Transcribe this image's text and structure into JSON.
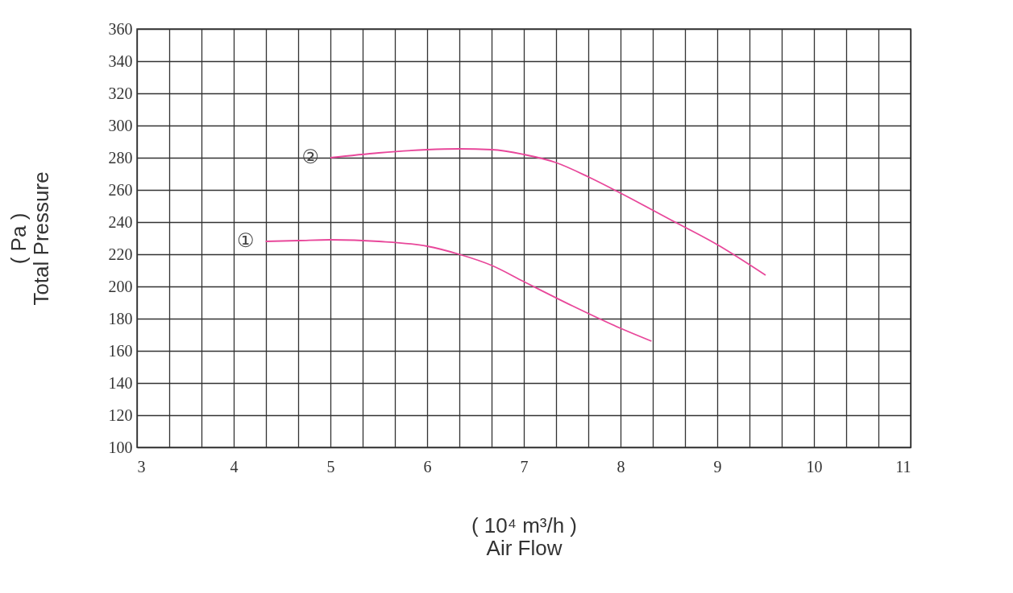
{
  "chart_data": {
    "type": "line",
    "xlabel": "( 10⁴ m³/h )\nAir Flow",
    "ylabel": "( Pa )\nTotal  Pressure",
    "xlim": [
      3,
      11
    ],
    "ylim": [
      100,
      360
    ],
    "xticks": [
      3,
      {
        "value": 3.333,
        "label": null
      },
      {
        "value": 3.667,
        "label": null
      },
      4,
      {
        "value": 4.333,
        "label": null
      },
      {
        "value": 4.667,
        "label": null
      },
      5,
      {
        "value": 5.333,
        "label": null
      },
      {
        "value": 5.667,
        "label": null
      },
      6,
      {
        "value": 6.333,
        "label": null
      },
      {
        "value": 6.667,
        "label": null
      },
      7,
      {
        "value": 7.333,
        "label": null
      },
      {
        "value": 7.667,
        "label": null
      },
      8,
      {
        "value": 8.333,
        "label": null
      },
      {
        "value": 8.667,
        "label": null
      },
      9,
      {
        "value": 9.333,
        "label": null
      },
      {
        "value": 9.667,
        "label": null
      },
      10,
      {
        "value": 10.333,
        "label": null
      },
      {
        "value": 10.667,
        "label": null
      },
      11
    ],
    "yticks": [
      100,
      120,
      140,
      160,
      180,
      200,
      220,
      240,
      260,
      280,
      300,
      320,
      340,
      360
    ],
    "grid": true,
    "legend": false,
    "marker": "none",
    "line_style": "solid",
    "series": [
      {
        "name": "①",
        "color": "#e8479a",
        "x": [
          4.33,
          4.67,
          5,
          5.5,
          6,
          6.33,
          6.67,
          7,
          7.5,
          8,
          8.32
        ],
        "values": [
          228,
          228.5,
          229,
          228,
          225,
          220,
          213,
          203,
          188,
          174,
          166
        ]
      },
      {
        "name": "②",
        "color": "#e8479a",
        "x": [
          5,
          5.5,
          6,
          6.33,
          6.67,
          7,
          7.33,
          7.67,
          8,
          8.5,
          9,
          9.5
        ],
        "values": [
          280,
          283,
          285,
          285.5,
          285,
          282,
          277,
          268,
          258,
          242,
          226,
          207
        ]
      }
    ]
  }
}
